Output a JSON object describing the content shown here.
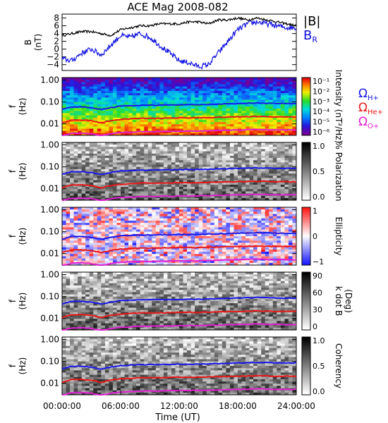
{
  "chart_data": {
    "type": "multi-panel",
    "title": "ACE Mag 2008-082",
    "time_axis": {
      "label": "Time (UT)",
      "ticks": [
        "00:00:00",
        "06:00:00",
        "12:00:00",
        "18:00:00",
        "24:00:00"
      ],
      "range_hours": [
        0,
        24
      ]
    },
    "top_panel": {
      "type": "line",
      "ylabel": "B\n(nT)",
      "yticks": [
        -4,
        -2,
        0,
        2,
        4,
        6,
        8
      ],
      "ylim": [
        -5.5,
        9
      ],
      "series": [
        {
          "name": "|B|",
          "color": "#000000",
          "x": [
            0,
            1,
            2,
            3,
            4,
            5,
            6,
            7,
            8,
            9,
            10,
            11,
            12,
            13,
            14,
            15,
            16,
            17,
            18,
            19,
            20,
            21,
            22,
            23,
            24
          ],
          "y": [
            3.5,
            4.0,
            4.5,
            4.5,
            4.0,
            3.5,
            5.0,
            5.5,
            6.0,
            6.0,
            6.5,
            6.5,
            6.5,
            7.0,
            7.0,
            6.5,
            7.5,
            7.5,
            8.0,
            7.5,
            8.0,
            7.5,
            7.0,
            6.5,
            6.0
          ]
        },
        {
          "name": "B_R",
          "color": "#1010e0",
          "x": [
            0,
            1,
            2,
            3,
            4,
            5,
            6,
            7,
            8,
            9,
            10,
            11,
            12,
            13,
            14,
            15,
            16,
            17,
            18,
            19,
            20,
            21,
            22,
            23,
            24
          ],
          "y": [
            -2.5,
            -3.0,
            -1.0,
            0.0,
            -1.5,
            1.0,
            3.5,
            3.0,
            4.0,
            3.0,
            1.0,
            -1.0,
            -3.0,
            -3.5,
            -4.5,
            -4.0,
            -1.0,
            2.0,
            5.0,
            6.5,
            7.0,
            6.5,
            6.0,
            5.5,
            5.5
          ]
        }
      ],
      "legend": [
        {
          "label": "|B|",
          "sub": "",
          "color": "#000000"
        },
        {
          "label": "B",
          "sub": "R",
          "color": "#1010e0"
        }
      ]
    },
    "spectrogram_panels": [
      {
        "name": "intensity",
        "colormap": "rainbow",
        "colorbar_label": "Intensity (nT²/Hz)",
        "colorbar_ticks": [
          "10⁻¹",
          "10⁻²",
          "10⁻³",
          "10⁻⁴",
          "10⁻⁵",
          "10⁻⁶"
        ]
      },
      {
        "name": "polarization",
        "colormap": "gray_reversed",
        "colorbar_label": "% Polarization",
        "colorbar_ticks": [
          "1.0",
          "0.5",
          "0.0"
        ]
      },
      {
        "name": "ellipticity",
        "colormap": "blue_white_red",
        "colorbar_label": "Ellipticity",
        "colorbar_ticks": [
          "1",
          "0",
          "−1"
        ]
      },
      {
        "name": "k-dot-b",
        "colormap": "gray_reversed",
        "colorbar_label": "k dot B\n(Deg)",
        "colorbar_ticks": [
          "90",
          "60",
          "30",
          "0"
        ]
      },
      {
        "name": "coherency",
        "colormap": "gray_reversed",
        "colorbar_label": "Coherency",
        "colorbar_ticks": [
          "1.0",
          "0.5",
          "0.0"
        ]
      }
    ],
    "frequency_axis": {
      "label": "f\n(Hz)",
      "scale": "log",
      "ticks": [
        "1.00",
        "0.10",
        "0.01"
      ],
      "ylim": [
        0.003,
        1.3
      ]
    },
    "gyrofrequency_lines": [
      {
        "name": "Ω H+",
        "label": "Ω",
        "sub": "H+",
        "color": "#1818e8",
        "x": [
          0,
          1,
          2,
          3,
          4,
          5,
          6,
          8,
          10,
          12,
          14,
          16,
          18,
          20,
          22,
          24
        ],
        "y": [
          0.045,
          0.06,
          0.06,
          0.055,
          0.045,
          0.055,
          0.065,
          0.07,
          0.072,
          0.075,
          0.075,
          0.08,
          0.085,
          0.09,
          0.085,
          0.085
        ]
      },
      {
        "name": "Ω He+",
        "label": "Ω",
        "sub": "He+",
        "color": "#e81818",
        "x": [
          0,
          1,
          2,
          3,
          4,
          5,
          6,
          8,
          10,
          12,
          14,
          16,
          18,
          20,
          22,
          24
        ],
        "y": [
          0.011,
          0.015,
          0.015,
          0.014,
          0.011,
          0.014,
          0.016,
          0.018,
          0.018,
          0.019,
          0.019,
          0.02,
          0.021,
          0.022,
          0.021,
          0.021
        ]
      },
      {
        "name": "Ω O+",
        "label": "Ω",
        "sub": "O+",
        "color": "#e020d0",
        "x": [
          0,
          1,
          2,
          3,
          4,
          5,
          6,
          8,
          10,
          12,
          14,
          16,
          18,
          20,
          22,
          24
        ],
        "y": [
          0.0028,
          0.0037,
          0.0038,
          0.0035,
          0.0028,
          0.0035,
          0.004,
          0.0044,
          0.0045,
          0.0047,
          0.0047,
          0.005,
          0.0053,
          0.0056,
          0.0053,
          0.0053
        ]
      }
    ]
  }
}
